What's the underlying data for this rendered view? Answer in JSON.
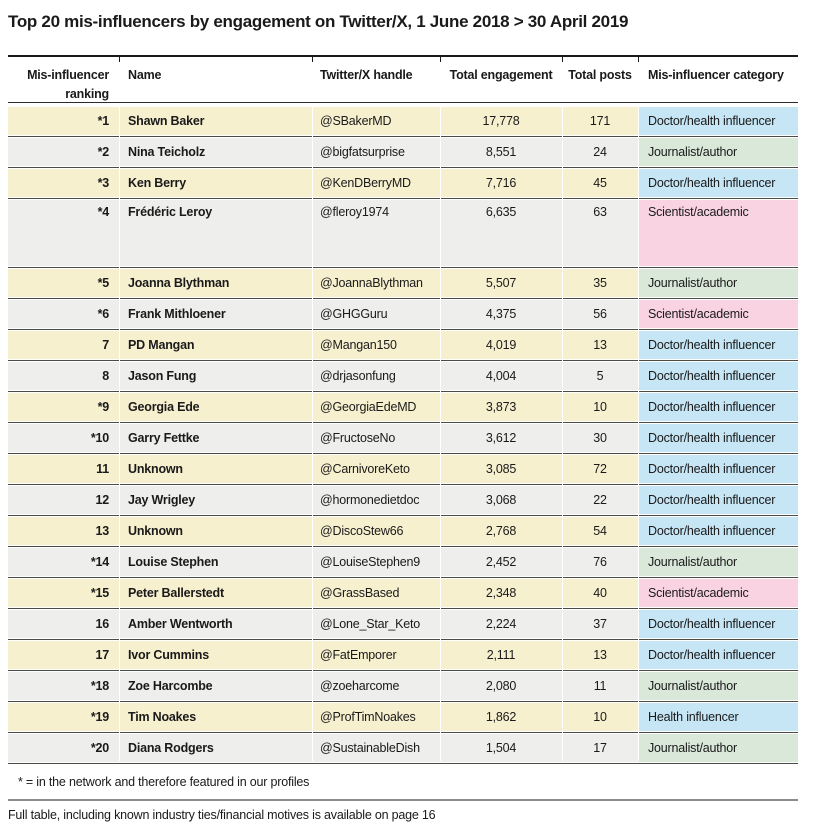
{
  "title": "Top 20 mis-influencers by engagement on Twitter/X, 1 June 2018 > 30 April 2019",
  "footnote": "* = in the network and therefore featured in our profiles",
  "bottom_note": "Full table, including known industry ties/financial motives is available on page 16",
  "category_colors": {
    "Doctor/health influencer": "#c6e5f5",
    "Journalist/author": "#d9e8d8",
    "Scientist/academic": "#f9d3e2",
    "Health influencer": "#c6e5f5"
  },
  "row_colors": {
    "odd": "#f7f0cf",
    "even": "#eeeeec"
  },
  "table": {
    "columns": [
      "Mis-influencer\nranking",
      "Name",
      "Twitter/X handle",
      "Total engagement",
      "Total posts",
      "Mis-influencer category"
    ],
    "rows": [
      {
        "ranking": "*1",
        "name": "Shawn Baker",
        "handle": "@SBakerMD",
        "engagement": "17,778",
        "posts": "171",
        "category": "Doctor/health influencer",
        "tall": false
      },
      {
        "ranking": "*2",
        "name": "Nina Teicholz",
        "handle": "@bigfatsurprise",
        "engagement": "8,551",
        "posts": "24",
        "category": "Journalist/author",
        "tall": false
      },
      {
        "ranking": "*3",
        "name": "Ken Berry",
        "handle": "@KenDBerryMD",
        "engagement": "7,716",
        "posts": "45",
        "category": "Doctor/health influencer",
        "tall": false
      },
      {
        "ranking": "*4",
        "name": "Frédéric Leroy",
        "handle": "@fleroy1974",
        "engagement": "6,635",
        "posts": "63",
        "category": "Scientist/academic",
        "tall": true
      },
      {
        "ranking": "*5",
        "name": "Joanna Blythman",
        "handle": "@JoannaBlythman",
        "engagement": "5,507",
        "posts": "35",
        "category": "Journalist/author",
        "tall": false
      },
      {
        "ranking": "*6",
        "name": "Frank Mithloener",
        "handle": "@GHGGuru",
        "engagement": "4,375",
        "posts": "56",
        "category": "Scientist/academic",
        "tall": false
      },
      {
        "ranking": "7",
        "name": "PD Mangan",
        "handle": "@Mangan150",
        "engagement": "4,019",
        "posts": "13",
        "category": "Doctor/health influencer",
        "tall": false
      },
      {
        "ranking": "8",
        "name": "Jason Fung",
        "handle": "@drjasonfung",
        "engagement": "4,004",
        "posts": "5",
        "category": "Doctor/health influencer",
        "tall": false
      },
      {
        "ranking": "*9",
        "name": "Georgia Ede",
        "handle": "@GeorgiaEdeMD",
        "engagement": "3,873",
        "posts": "10",
        "category": "Doctor/health influencer",
        "tall": false
      },
      {
        "ranking": "*10",
        "name": "Garry Fettke",
        "handle": "@FructoseNo",
        "engagement": "3,612",
        "posts": "30",
        "category": "Doctor/health influencer",
        "tall": false
      },
      {
        "ranking": "11",
        "name": "Unknown",
        "handle": "@CarnivoreKeto",
        "engagement": "3,085",
        "posts": "72",
        "category": "Doctor/health influencer",
        "tall": false
      },
      {
        "ranking": "12",
        "name": "Jay Wrigley",
        "handle": "@hormonedietdoc",
        "engagement": "3,068",
        "posts": "22",
        "category": "Doctor/health influencer",
        "tall": false
      },
      {
        "ranking": "13",
        "name": "Unknown",
        "handle": "@DiscoStew66",
        "engagement": "2,768",
        "posts": "54",
        "category": "Doctor/health influencer",
        "tall": false
      },
      {
        "ranking": "*14",
        "name": "Louise Stephen",
        "handle": "@LouiseStephen9",
        "engagement": "2,452",
        "posts": "76",
        "category": "Journalist/author",
        "tall": false
      },
      {
        "ranking": "*15",
        "name": "Peter Ballerstedt",
        "handle": "@GrassBased",
        "engagement": "2,348",
        "posts": "40",
        "category": "Scientist/academic",
        "tall": false
      },
      {
        "ranking": "16",
        "name": "Amber Wentworth",
        "handle": "@Lone_Star_Keto",
        "engagement": "2,224",
        "posts": "37",
        "category": "Doctor/health influencer",
        "tall": false
      },
      {
        "ranking": "17",
        "name": "Ivor Cummins",
        "handle": "@FatEmporer",
        "engagement": "2,111",
        "posts": "13",
        "category": "Doctor/health influencer",
        "tall": false
      },
      {
        "ranking": "*18",
        "name": "Zoe Harcombe",
        "handle": "@zoeharcome",
        "engagement": "2,080",
        "posts": "11",
        "category": "Journalist/author",
        "tall": false
      },
      {
        "ranking": "*19",
        "name": "Tim Noakes",
        "handle": "@ProfTimNoakes",
        "engagement": "1,862",
        "posts": "10",
        "category": "Health influencer",
        "tall": false
      },
      {
        "ranking": "*20",
        "name": "Diana Rodgers",
        "handle": "@SustainableDish",
        "engagement": "1,504",
        "posts": "17",
        "category": "Journalist/author",
        "tall": false
      }
    ]
  },
  "chart_data": {
    "type": "table",
    "title": "Top 20 mis-influencers by engagement on Twitter/X, 1 June 2018 > 30 April 2019",
    "columns": [
      "Mis-influencer ranking",
      "Name",
      "Twitter/X handle",
      "Total engagement",
      "Total posts",
      "Mis-influencer category"
    ],
    "rows": [
      [
        "*1",
        "Shawn Baker",
        "@SBakerMD",
        17778,
        171,
        "Doctor/health influencer"
      ],
      [
        "*2",
        "Nina Teicholz",
        "@bigfatsurprise",
        8551,
        24,
        "Journalist/author"
      ],
      [
        "*3",
        "Ken Berry",
        "@KenDBerryMD",
        7716,
        45,
        "Doctor/health influencer"
      ],
      [
        "*4",
        "Frédéric Leroy",
        "@fleroy1974",
        6635,
        63,
        "Scientist/academic"
      ],
      [
        "*5",
        "Joanna Blythman",
        "@JoannaBlythman",
        5507,
        35,
        "Journalist/author"
      ],
      [
        "*6",
        "Frank Mithloener",
        "@GHGGuru",
        4375,
        56,
        "Scientist/academic"
      ],
      [
        "7",
        "PD Mangan",
        "@Mangan150",
        4019,
        13,
        "Doctor/health influencer"
      ],
      [
        "8",
        "Jason Fung",
        "@drjasonfung",
        4004,
        5,
        "Doctor/health influencer"
      ],
      [
        "*9",
        "Georgia Ede",
        "@GeorgiaEdeMD",
        3873,
        10,
        "Doctor/health influencer"
      ],
      [
        "*10",
        "Garry Fettke",
        "@FructoseNo",
        3612,
        30,
        "Doctor/health influencer"
      ],
      [
        "11",
        "Unknown",
        "@CarnivoreKeto",
        3085,
        72,
        "Doctor/health influencer"
      ],
      [
        "12",
        "Jay Wrigley",
        "@hormonedietdoc",
        3068,
        22,
        "Doctor/health influencer"
      ],
      [
        "13",
        "Unknown",
        "@DiscoStew66",
        2768,
        54,
        "Doctor/health influencer"
      ],
      [
        "*14",
        "Louise Stephen",
        "@LouiseStephen9",
        2452,
        76,
        "Journalist/author"
      ],
      [
        "*15",
        "Peter Ballerstedt",
        "@GrassBased",
        2348,
        40,
        "Scientist/academic"
      ],
      [
        "16",
        "Amber Wentworth",
        "@Lone_Star_Keto",
        2224,
        37,
        "Doctor/health influencer"
      ],
      [
        "17",
        "Ivor Cummins",
        "@FatEmporer",
        2111,
        13,
        "Doctor/health influencer"
      ],
      [
        "*18",
        "Zoe Harcombe",
        "@zoeharcome",
        2080,
        11,
        "Journalist/author"
      ],
      [
        "*19",
        "Tim Noakes",
        "@ProfTimNoakes",
        1862,
        10,
        "Health influencer"
      ],
      [
        "*20",
        "Diana Rodgers",
        "@SustainableDish",
        1504,
        17,
        "Journalist/author"
      ]
    ],
    "notes": [
      "* = in the network and therefore featured in our profiles",
      "Full table, including known industry ties/financial motives is available on page 16"
    ]
  }
}
